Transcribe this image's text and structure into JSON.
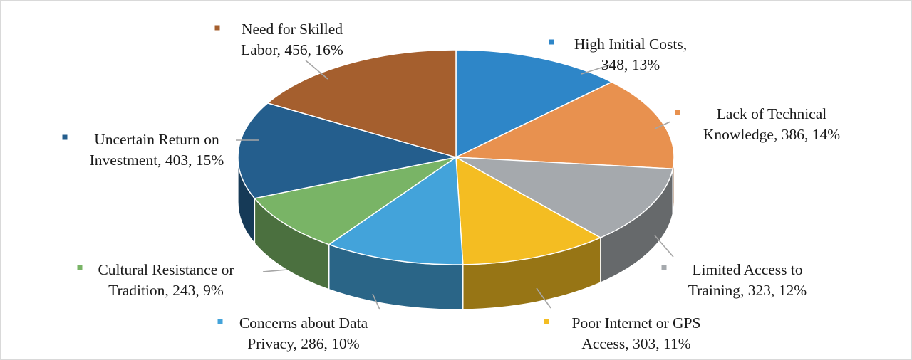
{
  "chart_data": {
    "type": "pie",
    "style": "3d",
    "slices": [
      {
        "label": "High Initial Costs",
        "value": 348,
        "percent": "13%",
        "color": "#2E86C8",
        "label_lines": [
          "High Initial Costs,",
          "348, 13%"
        ]
      },
      {
        "label": "Lack of Technical Knowledge",
        "value": 386,
        "percent": "14%",
        "color": "#E8914F",
        "label_lines": [
          "Lack of Technical",
          "Knowledge, 386, 14%"
        ]
      },
      {
        "label": "Limited Access to Training",
        "value": 323,
        "percent": "12%",
        "color": "#A5A9AD",
        "label_lines": [
          "Limited Access to",
          "Training, 323, 12%"
        ]
      },
      {
        "label": "Poor Internet or GPS Access",
        "value": 303,
        "percent": "11%",
        "color": "#F4BD22",
        "label_lines": [
          "Poor Internet or GPS",
          "Access, 303, 11%"
        ]
      },
      {
        "label": "Concerns about Data Privacy",
        "value": 286,
        "percent": "10%",
        "color": "#43A3DA",
        "label_lines": [
          "Concerns about Data",
          "Privacy, 286, 10%"
        ]
      },
      {
        "label": "Cultural Resistance or Tradition",
        "value": 243,
        "percent": "9%",
        "color": "#79B466",
        "label_lines": [
          "Cultural Resistance or",
          "Tradition, 243, 9%"
        ]
      },
      {
        "label": "Uncertain Return on Investment",
        "value": 403,
        "percent": "15%",
        "color": "#245E8D",
        "label_lines": [
          "Uncertain Return on",
          "Investment, 403, 15%"
        ]
      },
      {
        "label": "Need for Skilled Labor",
        "value": 456,
        "percent": "16%",
        "color": "#A55F2E",
        "label_lines": [
          "Need for Skilled",
          "Labor, 456, 16%"
        ]
      }
    ],
    "title": "",
    "legend": "none",
    "data_labels": "outside with leader lines"
  }
}
